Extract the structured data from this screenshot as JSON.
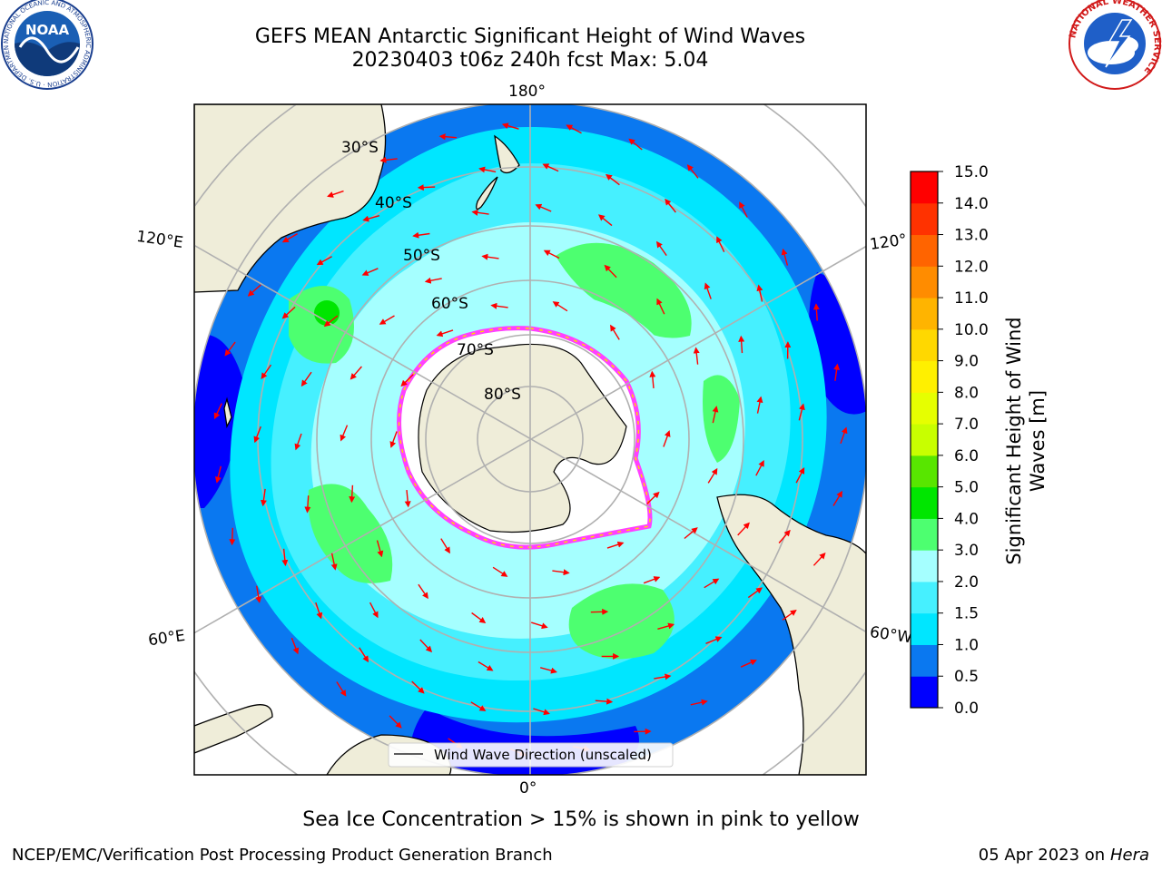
{
  "header": {
    "title_line1": "GEFS MEAN Antarctic Significant Height of Wind Waves",
    "title_line2": "20230403 t06z 240h fcst   Max: 5.04"
  },
  "logos": {
    "noaa_text": "NOAA",
    "noaa_ring": "NATIONAL OCEANIC AND ATMOSPHERIC ADMINISTRATION · U.S. DEPARTMENT OF COMMERCE",
    "nws_ring": "NATIONAL WEATHER SERVICE"
  },
  "map": {
    "longitude_labels": {
      "top": "180°",
      "bottom": "0°",
      "upper_left": "120°E",
      "lower_left": "60°E",
      "upper_right": "120°",
      "lower_right": "60°W"
    },
    "latitude_labels": [
      "30°S",
      "40°S",
      "50°S",
      "60°S",
      "70°S",
      "80°S"
    ],
    "legend_label": "Wind Wave Direction (unscaled)"
  },
  "colorbar": {
    "label_line1": "Significant Height of Wind",
    "label_line2": "Waves [m]",
    "ticks": [
      "0.0",
      "0.5",
      "1.0",
      "1.5",
      "2.0",
      "3.0",
      "4.0",
      "5.0",
      "6.0",
      "7.0",
      "8.0",
      "9.0",
      "10.0",
      "11.0",
      "12.0",
      "13.0",
      "14.0",
      "15.0"
    ],
    "colors": [
      "#0000ff",
      "#0a78f0",
      "#00e6ff",
      "#46f0ff",
      "#a5ffff",
      "#4dff70",
      "#00e600",
      "#58e600",
      "#c8ff00",
      "#e6ff00",
      "#fff000",
      "#ffd800",
      "#ffb400",
      "#ff8c00",
      "#ff6400",
      "#ff3200",
      "#ff0000"
    ]
  },
  "colors": {
    "land": "#efedd9",
    "ice": "#ffffff",
    "arrow": "#ff0000",
    "grid": "#b0b0b0"
  },
  "note": "Sea Ice Concentration > 15% is shown in pink to yellow",
  "footer": {
    "left": "NCEP/EMC/Verification Post Processing Product Generation Branch",
    "right_date": "05 Apr 2023 on ",
    "right_machine": "Hera"
  }
}
